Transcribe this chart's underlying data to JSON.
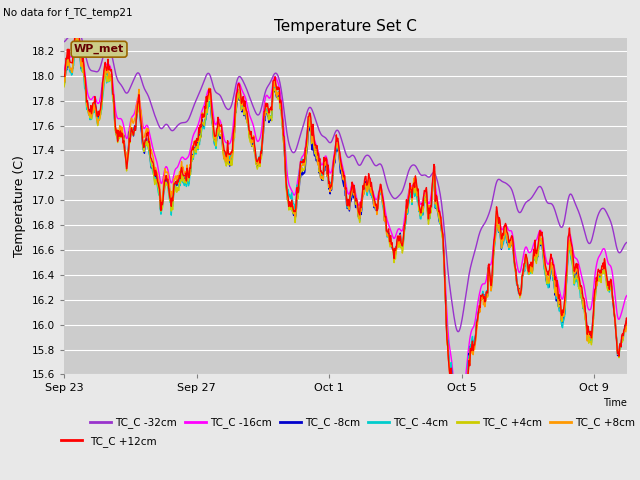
{
  "title": "Temperature Set C",
  "subtitle": "No data for f_TC_temp21",
  "ylabel": "Temperature (C)",
  "xlabel": "Time",
  "ylim": [
    15.6,
    18.3
  ],
  "background_color": "#e8e8e8",
  "plot_bg_color": "#cccccc",
  "grid_color": "#ffffff",
  "series": [
    {
      "label": "TC_C -32cm",
      "color": "#9933cc"
    },
    {
      "label": "TC_C -16cm",
      "color": "#ff00ff"
    },
    {
      "label": "TC_C -8cm",
      "color": "#0000cc"
    },
    {
      "label": "TC_C -4cm",
      "color": "#00cccc"
    },
    {
      "label": "TC_C +4cm",
      "color": "#cccc00"
    },
    {
      "label": "TC_C +8cm",
      "color": "#ff9900"
    },
    {
      "label": "TC_C +12cm",
      "color": "#ff0000"
    }
  ],
  "wp_met_box_facecolor": "#cccc88",
  "wp_met_box_edgecolor": "#996600",
  "wp_met_text_color": "#660000",
  "xtick_labels": [
    "Sep 23",
    "Sep 27",
    "Oct 1",
    "Oct 5",
    "Oct 9"
  ],
  "xtick_positions": [
    0,
    4,
    8,
    12,
    16
  ],
  "yticks": [
    15.6,
    15.8,
    16.0,
    16.2,
    16.4,
    16.6,
    16.8,
    17.0,
    17.2,
    17.4,
    17.6,
    17.8,
    18.0,
    18.2
  ]
}
